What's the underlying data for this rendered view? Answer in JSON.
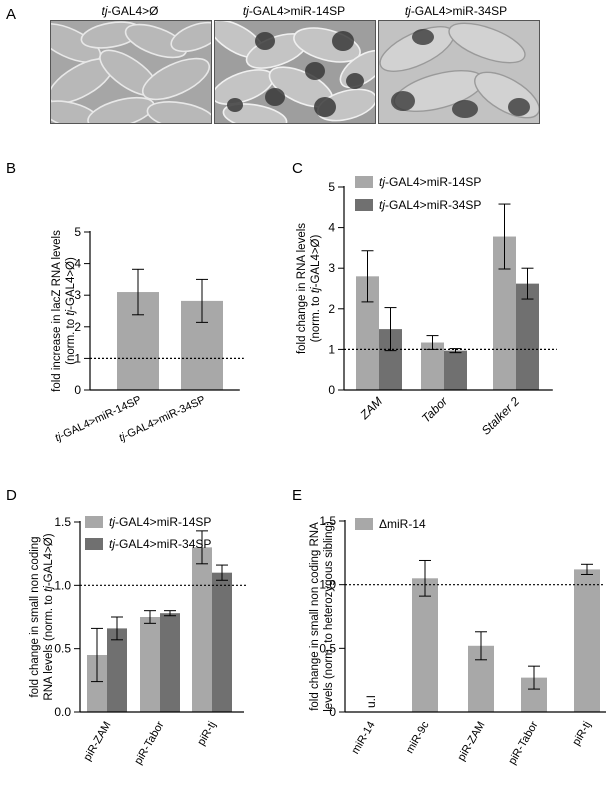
{
  "panel_a": {
    "letter": "A",
    "images": [
      {
        "prefix": "tj",
        "suffix": "-GAL4>Ø"
      },
      {
        "prefix": "tj",
        "suffix": "-GAL4>miR-14SP"
      },
      {
        "prefix": "tj",
        "suffix": "-GAL4>miR-34SP"
      }
    ]
  },
  "colors": {
    "light": "#a8a8a8",
    "dark": "#707070"
  },
  "chart_data": [
    {
      "panel": "B",
      "type": "bar",
      "ylabel_lines": [
        "fold increase in lacZ RNA levels",
        "(norm. to tj-GAL4>Ø)"
      ],
      "ylim": [
        0,
        5
      ],
      "yticks": [
        "0",
        "1",
        "2",
        "3",
        "4",
        "5"
      ],
      "reference_line": 1,
      "categories": [
        "tj-GAL4>miR-14SP",
        "tj-GAL4>miR-34SP"
      ],
      "series": [
        {
          "values": [
            3.1,
            2.82
          ],
          "errors": [
            0.72,
            0.68
          ],
          "color": "#a8a8a8"
        }
      ]
    },
    {
      "panel": "C",
      "type": "bar",
      "ylabel_lines": [
        "fold change in RNA levels",
        "(norm. to tj-GAL4>Ø)"
      ],
      "ylim": [
        0,
        5
      ],
      "yticks": [
        "0",
        "1",
        "2",
        "3",
        "4",
        "5"
      ],
      "reference_line": 1,
      "categories": [
        "ZAM",
        "Tabor",
        "Stalker 2"
      ],
      "legend": [
        "tj-GAL4>miR-14SP",
        "tj-GAL4>miR-34SP"
      ],
      "series": [
        {
          "name": "tj-GAL4>miR-14SP",
          "values": [
            2.8,
            1.17,
            3.78
          ],
          "errors": [
            0.63,
            0.17,
            0.8
          ],
          "color": "#a8a8a8"
        },
        {
          "name": "tj-GAL4>miR-34SP",
          "values": [
            1.5,
            0.97,
            2.62
          ],
          "errors": [
            0.53,
            0.05,
            0.38
          ],
          "color": "#707070"
        }
      ]
    },
    {
      "panel": "D",
      "type": "bar",
      "ylabel_lines": [
        "fold change in small non coding",
        "RNA levels (norm. to tj-GAL4>Ø)"
      ],
      "ylim": [
        0,
        1.5
      ],
      "yticks": [
        "0.0",
        "0.5",
        "1.0",
        "1.5"
      ],
      "reference_line": 1,
      "categories": [
        "piR-ZAM",
        "piR-Tabor",
        "piR-tj"
      ],
      "legend": [
        "tj-GAL4>miR-14SP",
        "tj-GAL4>miR-34SP"
      ],
      "series": [
        {
          "name": "tj-GAL4>miR-14SP",
          "values": [
            0.45,
            0.75,
            1.3
          ],
          "errors": [
            0.21,
            0.05,
            0.13
          ],
          "color": "#a8a8a8"
        },
        {
          "name": "tj-GAL4>miR-34SP",
          "values": [
            0.66,
            0.78,
            1.1
          ],
          "errors": [
            0.09,
            0.02,
            0.06
          ],
          "color": "#707070"
        }
      ]
    },
    {
      "panel": "E",
      "type": "bar",
      "ylabel_lines": [
        "fold change in small non coding RNA",
        "levels (norm. to heterozygous sibling)"
      ],
      "ylim": [
        0,
        1.5
      ],
      "yticks": [
        "0",
        "0.5",
        "1.0",
        "1.5"
      ],
      "reference_line": 1,
      "categories": [
        "miR-14",
        "miR-9c",
        "piR-ZAM",
        "piR-Tabor",
        "piR-tj"
      ],
      "legend": [
        "ΔmiR-14"
      ],
      "annotation": "u.l",
      "series": [
        {
          "name": "ΔmiR-14",
          "values": [
            null,
            1.05,
            0.52,
            0.27,
            1.12
          ],
          "errors": [
            null,
            0.14,
            0.11,
            0.09,
            0.04
          ],
          "color": "#a8a8a8"
        }
      ]
    }
  ]
}
